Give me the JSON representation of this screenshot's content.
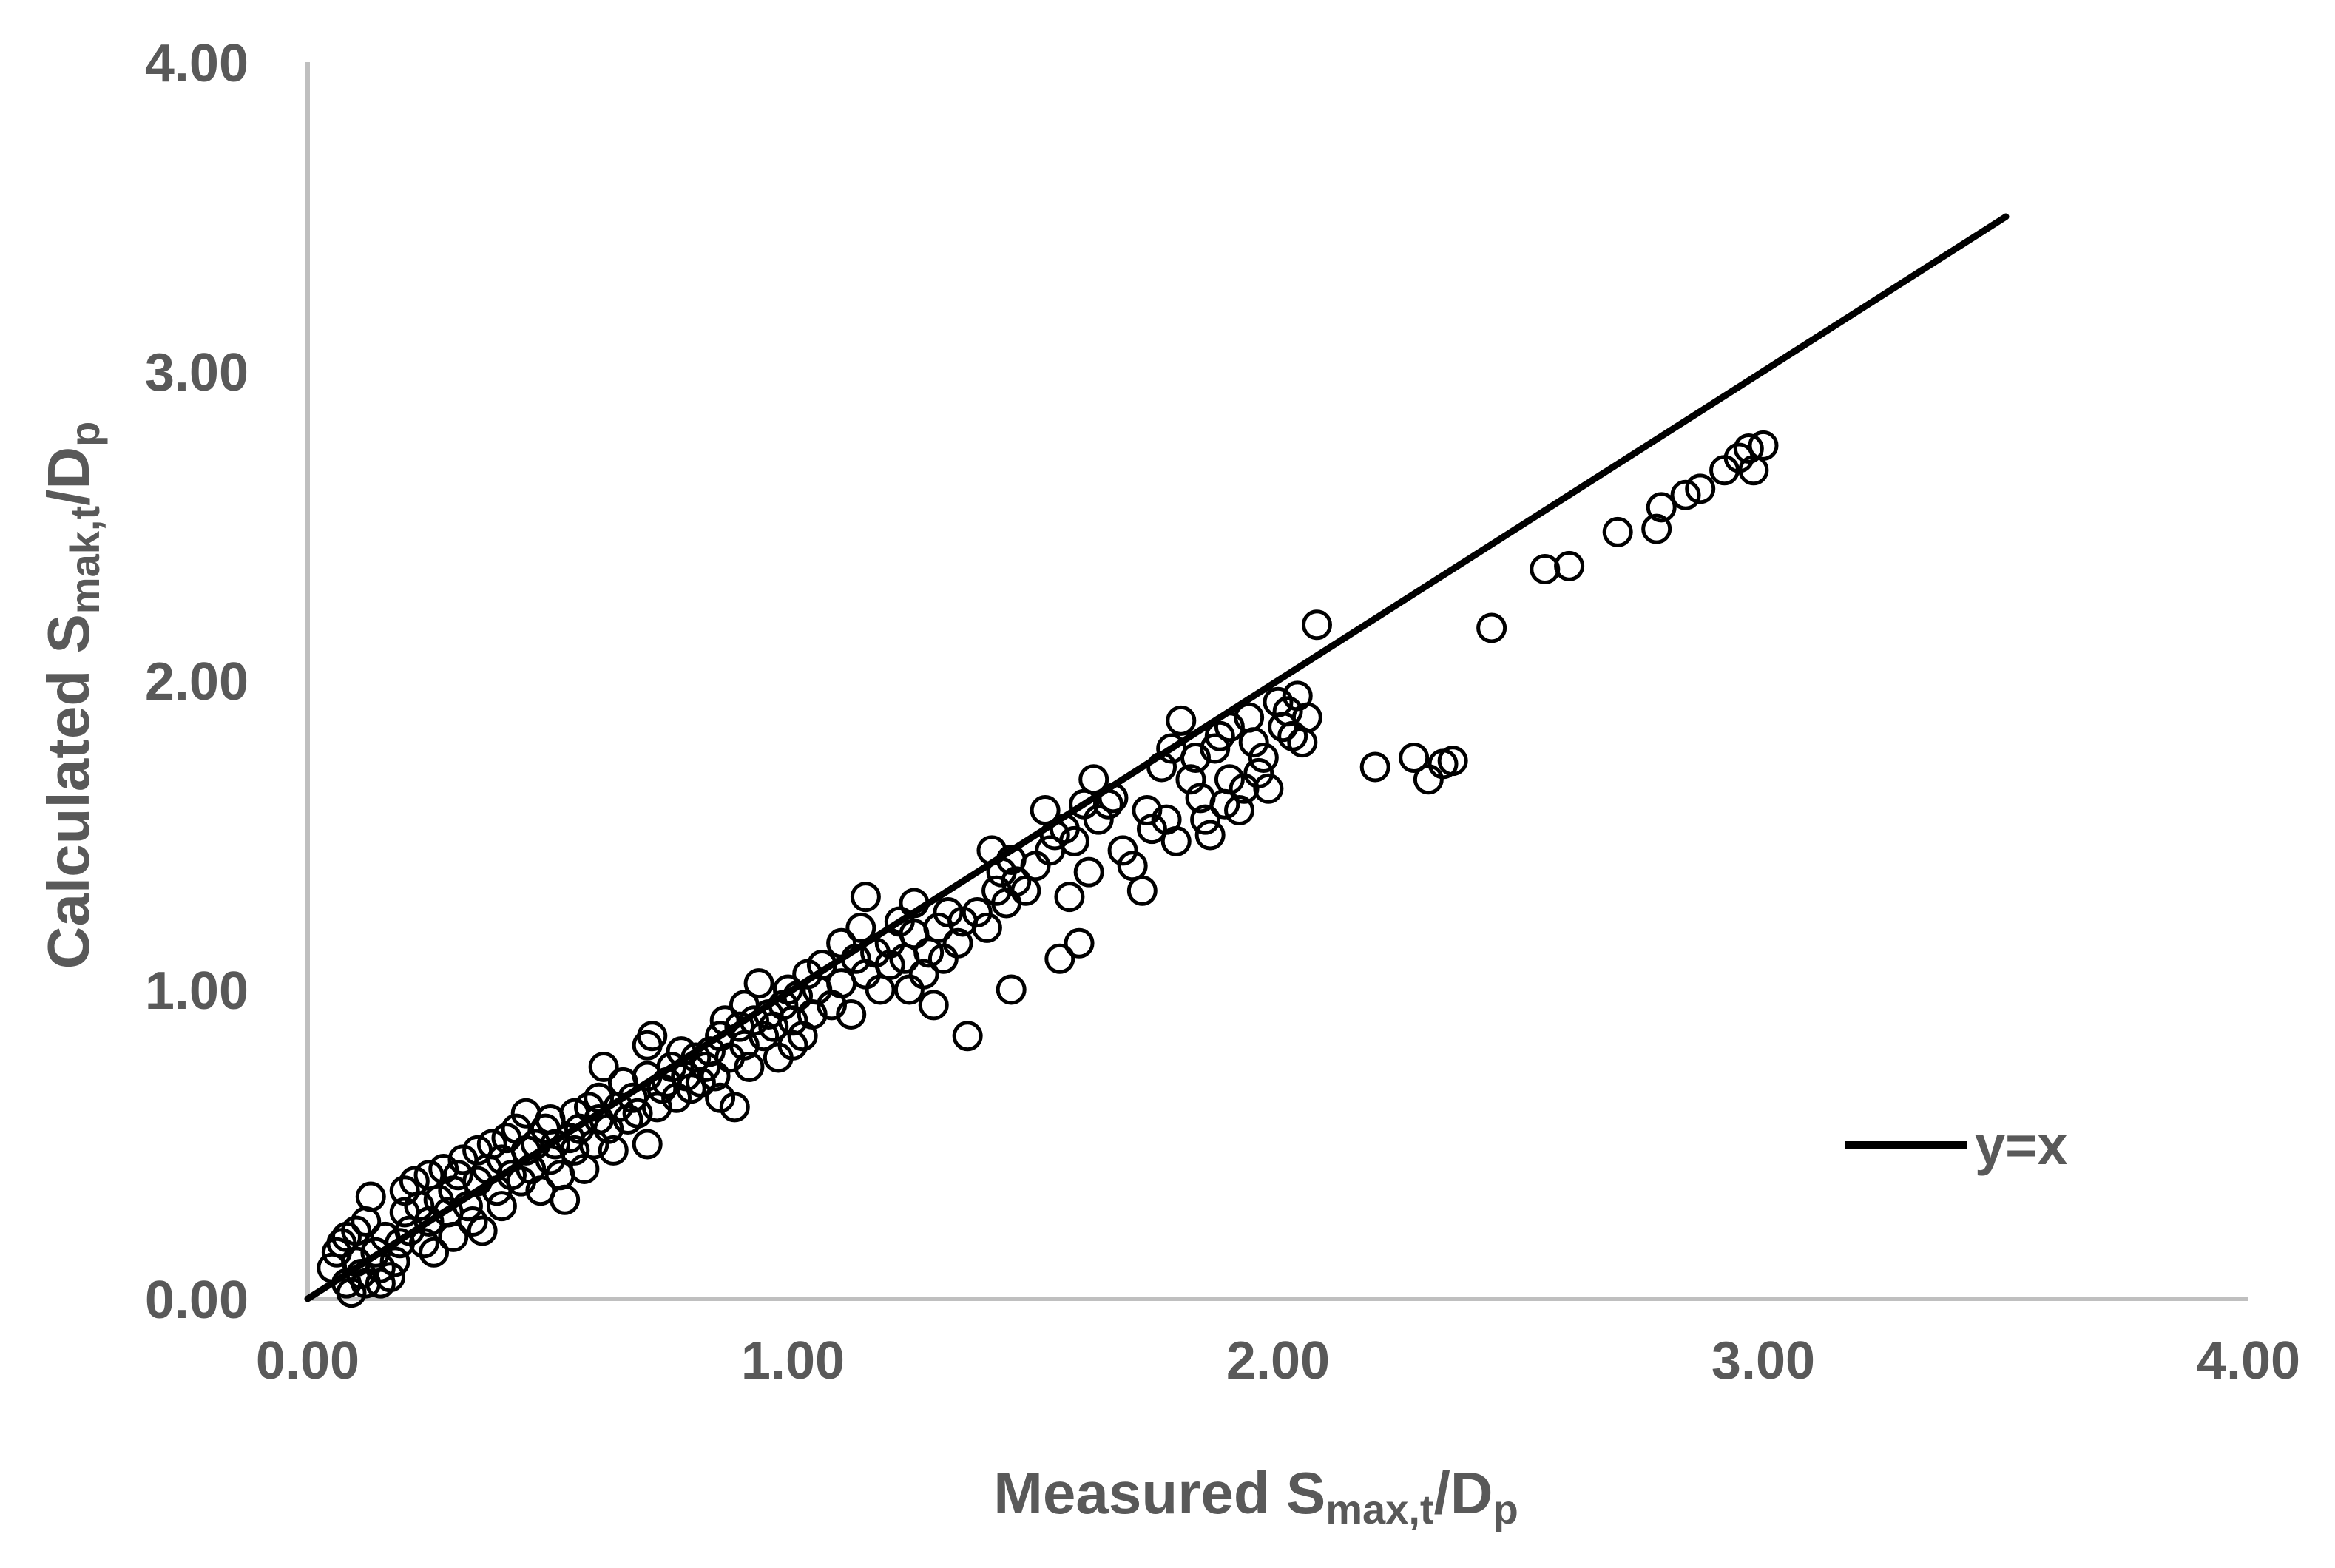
{
  "chart_data": {
    "type": "scatter",
    "xlabel": {
      "main": "Measured S",
      "sub": "max,t",
      "mid": "/D",
      "sub2": "p"
    },
    "ylabel": {
      "main": "Calculated S",
      "sub": "mak,t",
      "mid": "/D",
      "sub2": "p"
    },
    "xlim": [
      0,
      4
    ],
    "ylim": [
      0,
      4
    ],
    "x_ticks": [
      "0.00",
      "1.00",
      "2.00",
      "3.00",
      "4.00"
    ],
    "y_ticks": [
      "0.00",
      "1.00",
      "2.00",
      "3.00",
      "4.00"
    ],
    "grid": false,
    "legend_position": "bottom-right",
    "reference_line": {
      "name": "y=x",
      "x": [
        0,
        3.5
      ],
      "y": [
        0,
        3.5
      ],
      "color": "#000000"
    },
    "marker_color": "#000000",
    "points": [
      [
        0.05,
        0.1
      ],
      [
        0.06,
        0.15
      ],
      [
        0.07,
        0.18
      ],
      [
        0.08,
        0.2
      ],
      [
        0.08,
        0.05
      ],
      [
        0.09,
        0.02
      ],
      [
        0.1,
        0.12
      ],
      [
        0.1,
        0.22
      ],
      [
        0.11,
        0.08
      ],
      [
        0.12,
        0.05
      ],
      [
        0.12,
        0.25
      ],
      [
        0.13,
        0.33
      ],
      [
        0.14,
        0.15
      ],
      [
        0.15,
        0.05
      ],
      [
        0.15,
        0.1
      ],
      [
        0.16,
        0.2
      ],
      [
        0.17,
        0.07
      ],
      [
        0.18,
        0.12
      ],
      [
        0.19,
        0.18
      ],
      [
        0.2,
        0.28
      ],
      [
        0.2,
        0.35
      ],
      [
        0.21,
        0.22
      ],
      [
        0.22,
        0.38
      ],
      [
        0.23,
        0.3
      ],
      [
        0.24,
        0.18
      ],
      [
        0.25,
        0.25
      ],
      [
        0.25,
        0.4
      ],
      [
        0.26,
        0.15
      ],
      [
        0.27,
        0.32
      ],
      [
        0.28,
        0.42
      ],
      [
        0.29,
        0.28
      ],
      [
        0.3,
        0.35
      ],
      [
        0.3,
        0.2
      ],
      [
        0.31,
        0.4
      ],
      [
        0.32,
        0.45
      ],
      [
        0.33,
        0.3
      ],
      [
        0.34,
        0.25
      ],
      [
        0.35,
        0.38
      ],
      [
        0.35,
        0.48
      ],
      [
        0.36,
        0.22
      ],
      [
        0.37,
        0.42
      ],
      [
        0.38,
        0.5
      ],
      [
        0.39,
        0.35
      ],
      [
        0.4,
        0.45
      ],
      [
        0.4,
        0.3
      ],
      [
        0.41,
        0.52
      ],
      [
        0.42,
        0.4
      ],
      [
        0.43,
        0.55
      ],
      [
        0.44,
        0.38
      ],
      [
        0.45,
        0.6
      ],
      [
        0.45,
        0.48
      ],
      [
        0.46,
        0.42
      ],
      [
        0.47,
        0.5
      ],
      [
        0.48,
        0.35
      ],
      [
        0.49,
        0.55
      ],
      [
        0.5,
        0.45
      ],
      [
        0.5,
        0.58
      ],
      [
        0.51,
        0.5
      ],
      [
        0.52,
        0.4
      ],
      [
        0.53,
        0.32
      ],
      [
        0.54,
        0.52
      ],
      [
        0.55,
        0.48
      ],
      [
        0.55,
        0.6
      ],
      [
        0.56,
        0.55
      ],
      [
        0.57,
        0.42
      ],
      [
        0.58,
        0.62
      ],
      [
        0.59,
        0.5
      ],
      [
        0.6,
        0.58
      ],
      [
        0.6,
        0.65
      ],
      [
        0.61,
        0.75
      ],
      [
        0.62,
        0.55
      ],
      [
        0.63,
        0.48
      ],
      [
        0.64,
        0.62
      ],
      [
        0.65,
        0.7
      ],
      [
        0.66,
        0.58
      ],
      [
        0.67,
        0.65
      ],
      [
        0.68,
        0.6
      ],
      [
        0.7,
        0.5
      ],
      [
        0.7,
        0.72
      ],
      [
        0.7,
        0.82
      ],
      [
        0.71,
        0.85
      ],
      [
        0.72,
        0.62
      ],
      [
        0.73,
        0.68
      ],
      [
        0.74,
        0.7
      ],
      [
        0.75,
        0.75
      ],
      [
        0.76,
        0.65
      ],
      [
        0.77,
        0.8
      ],
      [
        0.78,
        0.72
      ],
      [
        0.79,
        0.68
      ],
      [
        0.8,
        0.78
      ],
      [
        0.81,
        0.7
      ],
      [
        0.82,
        0.75
      ],
      [
        0.83,
        0.8
      ],
      [
        0.84,
        0.72
      ],
      [
        0.85,
        0.65
      ],
      [
        0.85,
        0.85
      ],
      [
        0.86,
        0.9
      ],
      [
        0.87,
        0.78
      ],
      [
        0.88,
        0.62
      ],
      [
        0.89,
        0.88
      ],
      [
        0.9,
        0.82
      ],
      [
        0.9,
        0.95
      ],
      [
        0.91,
        0.75
      ],
      [
        0.92,
        0.9
      ],
      [
        0.93,
        1.02
      ],
      [
        0.94,
        0.85
      ],
      [
        0.95,
        0.92
      ],
      [
        0.96,
        0.88
      ],
      [
        0.97,
        0.78
      ],
      [
        0.98,
        0.95
      ],
      [
        0.99,
        1.0
      ],
      [
        1.0,
        0.82
      ],
      [
        1.0,
        0.9
      ],
      [
        1.01,
        0.98
      ],
      [
        1.02,
        0.85
      ],
      [
        1.03,
        1.05
      ],
      [
        1.04,
        0.92
      ],
      [
        1.05,
        1.0
      ],
      [
        1.06,
        1.08
      ],
      [
        1.08,
        0.95
      ],
      [
        1.1,
        1.02
      ],
      [
        1.1,
        1.15
      ],
      [
        1.12,
        0.92
      ],
      [
        1.13,
        1.1
      ],
      [
        1.14,
        1.2
      ],
      [
        1.15,
        1.05
      ],
      [
        1.15,
        1.3
      ],
      [
        1.17,
        1.12
      ],
      [
        1.18,
        1.0
      ],
      [
        1.2,
        1.08
      ],
      [
        1.2,
        1.15
      ],
      [
        1.22,
        1.22
      ],
      [
        1.23,
        1.1
      ],
      [
        1.24,
        1.0
      ],
      [
        1.25,
        1.18
      ],
      [
        1.25,
        1.28
      ],
      [
        1.27,
        1.05
      ],
      [
        1.28,
        1.12
      ],
      [
        1.29,
        0.95
      ],
      [
        1.3,
        1.2
      ],
      [
        1.31,
        1.1
      ],
      [
        1.32,
        1.25
      ],
      [
        1.34,
        1.15
      ],
      [
        1.35,
        1.22
      ],
      [
        1.36,
        0.85
      ],
      [
        1.38,
        1.25
      ],
      [
        1.4,
        1.2
      ],
      [
        1.41,
        1.45
      ],
      [
        1.42,
        1.32
      ],
      [
        1.43,
        1.38
      ],
      [
        1.44,
        1.28
      ],
      [
        1.45,
        1.42
      ],
      [
        1.45,
        1.0
      ],
      [
        1.46,
        1.35
      ],
      [
        1.48,
        1.32
      ],
      [
        1.5,
        1.4
      ],
      [
        1.52,
        1.58
      ],
      [
        1.53,
        1.45
      ],
      [
        1.54,
        1.5
      ],
      [
        1.55,
        1.1
      ],
      [
        1.56,
        1.52
      ],
      [
        1.57,
        1.3
      ],
      [
        1.58,
        1.48
      ],
      [
        1.59,
        1.15
      ],
      [
        1.6,
        1.6
      ],
      [
        1.61,
        1.38
      ],
      [
        1.62,
        1.68
      ],
      [
        1.63,
        1.55
      ],
      [
        1.65,
        1.6
      ],
      [
        1.66,
        1.62
      ],
      [
        1.68,
        1.45
      ],
      [
        1.7,
        1.4
      ],
      [
        1.72,
        1.32
      ],
      [
        1.73,
        1.58
      ],
      [
        1.74,
        1.52
      ],
      [
        1.76,
        1.72
      ],
      [
        1.77,
        1.55
      ],
      [
        1.78,
        1.78
      ],
      [
        1.79,
        1.48
      ],
      [
        1.8,
        1.87
      ],
      [
        1.82,
        1.68
      ],
      [
        1.83,
        1.75
      ],
      [
        1.84,
        1.62
      ],
      [
        1.85,
        1.55
      ],
      [
        1.86,
        1.5
      ],
      [
        1.87,
        1.78
      ],
      [
        1.88,
        1.82
      ],
      [
        1.89,
        1.6
      ],
      [
        1.9,
        1.85
      ],
      [
        1.9,
        1.68
      ],
      [
        1.92,
        1.58
      ],
      [
        1.93,
        1.65
      ],
      [
        1.94,
        1.88
      ],
      [
        1.95,
        1.8
      ],
      [
        1.96,
        1.7
      ],
      [
        1.97,
        1.75
      ],
      [
        1.98,
        1.65
      ],
      [
        2.0,
        1.93
      ],
      [
        2.01,
        1.85
      ],
      [
        2.02,
        1.9
      ],
      [
        2.03,
        1.82
      ],
      [
        2.04,
        1.95
      ],
      [
        2.05,
        1.8
      ],
      [
        2.06,
        1.88
      ],
      [
        2.08,
        2.18
      ],
      [
        2.2,
        1.72
      ],
      [
        2.28,
        1.75
      ],
      [
        2.31,
        1.68
      ],
      [
        2.34,
        1.73
      ],
      [
        2.36,
        1.74
      ],
      [
        2.44,
        2.17
      ],
      [
        2.55,
        2.36
      ],
      [
        2.6,
        2.37
      ],
      [
        2.7,
        2.48
      ],
      [
        2.78,
        2.49
      ],
      [
        2.79,
        2.56
      ],
      [
        2.84,
        2.6
      ],
      [
        2.87,
        2.62
      ],
      [
        2.92,
        2.68
      ],
      [
        2.95,
        2.72
      ],
      [
        2.97,
        2.75
      ],
      [
        2.98,
        2.68
      ],
      [
        3.0,
        2.76
      ]
    ]
  }
}
